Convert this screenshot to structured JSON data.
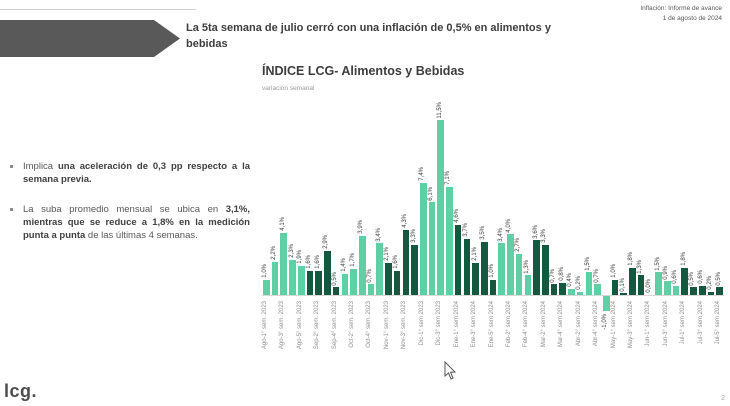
{
  "header": {
    "kicker_line1": "Inflación: Informe de avance",
    "kicker_line2": "1 de agosto de 2024",
    "title": "La 5ta semana de julio cerró con una inflación de 0,5% en alimentos y bebidas"
  },
  "bullets": [
    {
      "lead": "Implica ",
      "bold": "una aceleración de 0,3 pp respecto a la semana previa.",
      "tail": ""
    },
    {
      "lead": "La suba promedio mensual se ubica en ",
      "bold": "3,1%, mientras que se reduce a 1,8% en la medición punta a punta ",
      "tail": "de las últimas 4 semanas."
    }
  ],
  "chart_data": {
    "type": "bar",
    "title": "ÍNDICE LCG- Alimentos y Bebidas",
    "subtitle": "variación semanal",
    "ylabel": "variación semanal (%)",
    "ylim": [
      -1.5,
      12
    ],
    "grid": false,
    "legend": "none",
    "colors": {
      "light": "#5dd0a5",
      "dark": "#14593f"
    },
    "shade_meaning": "bars alternate color by month; light/dark groups = consecutive months Ago 2023 - Jul 2024",
    "points": [
      {
        "value": 1.0,
        "display": "1,0%",
        "shade": "L",
        "axis_label": "Ago-1° sem. 2023"
      },
      {
        "value": 2.2,
        "display": "2,2%",
        "shade": "L",
        "axis_label": ""
      },
      {
        "value": 4.1,
        "display": "4,1%",
        "shade": "L",
        "axis_label": "Ago-3° sem. 2023"
      },
      {
        "value": 2.3,
        "display": "2,3%",
        "shade": "L",
        "axis_label": ""
      },
      {
        "value": 1.9,
        "display": "1,9%",
        "shade": "L",
        "axis_label": "Ago-5° sem. 2023"
      },
      {
        "value": 1.6,
        "display": "1,6%",
        "shade": "D",
        "axis_label": ""
      },
      {
        "value": 1.6,
        "display": "1,6%",
        "shade": "D",
        "axis_label": "Sep-2° sem. 2023"
      },
      {
        "value": 2.9,
        "display": "2,9%",
        "shade": "D",
        "axis_label": ""
      },
      {
        "value": 0.5,
        "display": "0,5%",
        "shade": "D",
        "axis_label": "Sep-4° sem. 2023"
      },
      {
        "value": 1.4,
        "display": "1,4%",
        "shade": "L",
        "axis_label": ""
      },
      {
        "value": 1.7,
        "display": "1,7%",
        "shade": "L",
        "axis_label": "Oct-2° sem. 2023"
      },
      {
        "value": 3.9,
        "display": "3,9%",
        "shade": "L",
        "axis_label": ""
      },
      {
        "value": 0.7,
        "display": "0,7%",
        "shade": "L",
        "axis_label": "Oct-4° sem. 2023"
      },
      {
        "value": 3.4,
        "display": "3,4%",
        "shade": "L",
        "axis_label": ""
      },
      {
        "value": 2.1,
        "display": "2,1%",
        "shade": "D",
        "axis_label": "Nov-1° sem. 2023"
      },
      {
        "value": 1.6,
        "display": "1,6%",
        "shade": "D",
        "axis_label": ""
      },
      {
        "value": 4.3,
        "display": "4,3%",
        "shade": "D",
        "axis_label": "Nov-3° sem. 2023"
      },
      {
        "value": 3.3,
        "display": "3,3%",
        "shade": "D",
        "axis_label": ""
      },
      {
        "value": 7.4,
        "display": "7,4%",
        "shade": "L",
        "axis_label": "Dic-1° sem 2023"
      },
      {
        "value": 6.1,
        "display": "6,1%",
        "shade": "L",
        "axis_label": ""
      },
      {
        "value": 11.5,
        "display": "11,5%",
        "shade": "L",
        "axis_label": "Dic-3° sem 2023"
      },
      {
        "value": 7.1,
        "display": "7,1%",
        "shade": "L",
        "axis_label": ""
      },
      {
        "value": 4.6,
        "display": "4,6%",
        "shade": "D",
        "axis_label": "Ene-1° sem 2024"
      },
      {
        "value": 3.7,
        "display": "3,7%",
        "shade": "D",
        "axis_label": ""
      },
      {
        "value": 2.1,
        "display": "2,1%",
        "shade": "D",
        "axis_label": "Ene-3° sem 2024"
      },
      {
        "value": 3.5,
        "display": "3,5%",
        "shade": "D",
        "axis_label": ""
      },
      {
        "value": 1.0,
        "display": "1,0%",
        "shade": "D",
        "axis_label": "Ene-5° sem 2024"
      },
      {
        "value": 3.4,
        "display": "3,4%",
        "shade": "L",
        "axis_label": ""
      },
      {
        "value": 4.0,
        "display": "4,0%",
        "shade": "L",
        "axis_label": "Feb-2° sem 2024"
      },
      {
        "value": 2.7,
        "display": "2,7%",
        "shade": "L",
        "axis_label": ""
      },
      {
        "value": 1.3,
        "display": "1,3%",
        "shade": "L",
        "axis_label": "Feb-4° sem 2024"
      },
      {
        "value": 3.6,
        "display": "3,6%",
        "shade": "D",
        "axis_label": ""
      },
      {
        "value": 3.3,
        "display": "3,3%",
        "shade": "D",
        "axis_label": "Mar-2° sem 2024"
      },
      {
        "value": 0.7,
        "display": "0,7%",
        "shade": "D",
        "axis_label": ""
      },
      {
        "value": 0.8,
        "display": "0,8%",
        "shade": "D",
        "axis_label": "Mar-4° sem 2024"
      },
      {
        "value": 0.4,
        "display": "0,4%",
        "shade": "L",
        "axis_label": ""
      },
      {
        "value": 0.2,
        "display": "0,2%",
        "shade": "L",
        "axis_label": "Abr-2° sem 2024"
      },
      {
        "value": 1.5,
        "display": "1,5%",
        "shade": "L",
        "axis_label": ""
      },
      {
        "value": 0.7,
        "display": "0,7%",
        "shade": "L",
        "axis_label": "Abr-4° sem 2024"
      },
      {
        "value": -1.0,
        "display": "-1,0%",
        "shade": "L",
        "axis_label": ""
      },
      {
        "value": 1.0,
        "display": "1,0%",
        "shade": "D",
        "axis_label": "May-1° sem 2024"
      },
      {
        "value": 0.1,
        "display": "0,1%",
        "shade": "D",
        "axis_label": ""
      },
      {
        "value": 1.8,
        "display": "1,8%",
        "shade": "D",
        "axis_label": "May-3° sem 2024"
      },
      {
        "value": 1.3,
        "display": "1,3%",
        "shade": "D",
        "axis_label": ""
      },
      {
        "value": 0.0,
        "display": "0,0%",
        "shade": "L",
        "axis_label": "Jun-1° sem 2024"
      },
      {
        "value": 1.5,
        "display": "1,5%",
        "shade": "L",
        "axis_label": ""
      },
      {
        "value": 0.9,
        "display": "0,9%",
        "shade": "L",
        "axis_label": "Jun-3° sem 2024"
      },
      {
        "value": 0.6,
        "display": "0,6%",
        "shade": "L",
        "axis_label": ""
      },
      {
        "value": 1.8,
        "display": "1,8%",
        "shade": "D",
        "axis_label": "Jul-1° sem 2024"
      },
      {
        "value": 0.5,
        "display": "0,5%",
        "shade": "D",
        "axis_label": ""
      },
      {
        "value": 0.6,
        "display": "0,6%",
        "shade": "D",
        "axis_label": "Jul-3° sem 2024"
      },
      {
        "value": 0.2,
        "display": "0,2%",
        "shade": "D",
        "axis_label": ""
      },
      {
        "value": 0.5,
        "display": "0,5%",
        "shade": "D",
        "axis_label": "Jul-5° sem 2024"
      }
    ]
  },
  "footer": {
    "logo": "lcg.",
    "page": "2"
  }
}
